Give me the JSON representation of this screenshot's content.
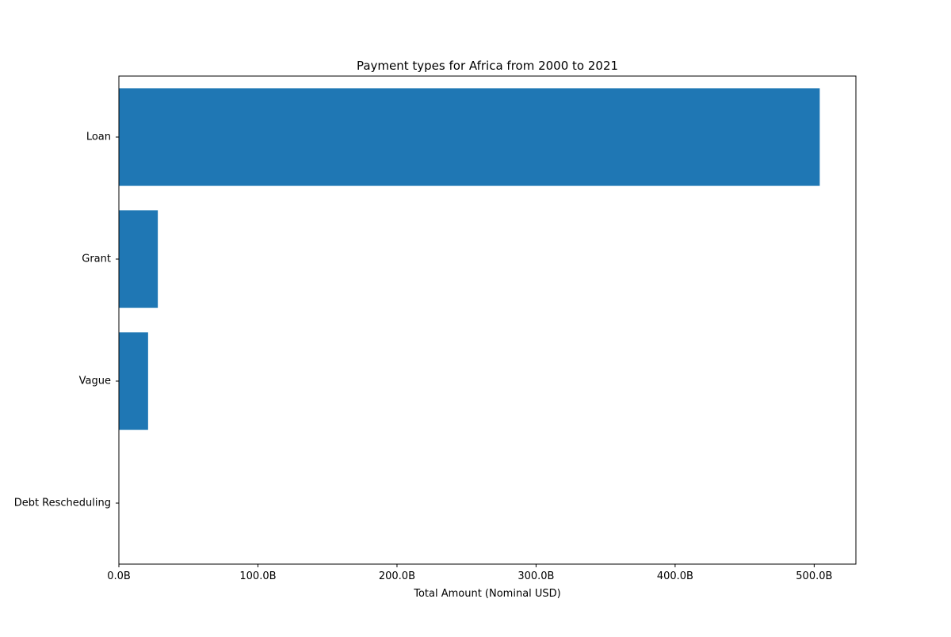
{
  "chart_data": {
    "type": "bar",
    "orientation": "horizontal",
    "title": "Payment types for Africa from 2000 to 2021",
    "xlabel": "Total Amount (Nominal USD)",
    "ylabel": "",
    "categories": [
      "Loan",
      "Grant",
      "Vague",
      "Debt Rescheduling"
    ],
    "values": [
      504,
      28,
      21,
      0
    ],
    "value_unit": "B",
    "xlim": [
      0,
      530
    ],
    "x_ticks": [
      0,
      100,
      200,
      300,
      400,
      500
    ],
    "x_tick_labels": [
      "0.0B",
      "100.0B",
      "200.0B",
      "300.0B",
      "400.0B",
      "500.0B"
    ],
    "bar_color": "#1f77b4",
    "grid": false,
    "legend": "none"
  }
}
